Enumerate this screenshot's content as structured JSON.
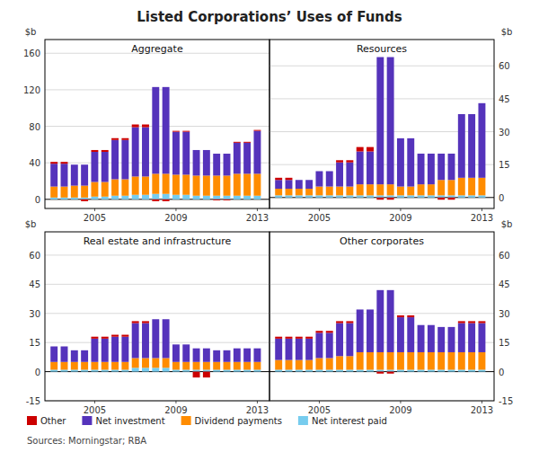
{
  "title": "Listed Corporations’ Uses of Funds",
  "annotations": [
    "Sources: Morningstar; RBA"
  ],
  "chart_data": [
    {
      "type": "bar",
      "stacked": true,
      "grid": true,
      "legend": "bottom",
      "title": "Aggregate",
      "ylabel": "$b",
      "x": [
        2003,
        2003.5,
        2004,
        2004.5,
        2005,
        2005.5,
        2006,
        2006.5,
        2007,
        2007.5,
        2008,
        2008.5,
        2009,
        2009.5,
        2010,
        2010.5,
        2011,
        2011.5,
        2012,
        2012.5,
        2013
      ],
      "xlim": [
        2002.55,
        2013.6
      ],
      "xticks": [
        2005,
        2009,
        2013
      ],
      "ylim": [
        -10,
        175
      ],
      "yticks": [
        0,
        40,
        80,
        120,
        160
      ],
      "series": [
        {
          "name": "Other",
          "color": "#cc0000",
          "values": [
            2,
            2,
            0,
            -2,
            2,
            2,
            2,
            2,
            3,
            3,
            -2,
            -2,
            1,
            1,
            0,
            0,
            -1,
            -1,
            1,
            1,
            1
          ]
        },
        {
          "name": "Net investment",
          "color": "#5533bb",
          "values": [
            25,
            25,
            23,
            23,
            33,
            33,
            43,
            43,
            54,
            54,
            95,
            95,
            47,
            47,
            28,
            28,
            24,
            24,
            34,
            34,
            47
          ]
        },
        {
          "name": "Dividend payments",
          "color": "#ff8c00",
          "values": [
            12,
            12,
            13,
            13,
            16,
            16,
            18,
            18,
            20,
            20,
            22,
            22,
            22,
            22,
            22,
            22,
            22,
            22,
            24,
            24,
            24
          ]
        },
        {
          "name": "Net interest paid",
          "color": "#77ccee",
          "values": [
            2,
            2,
            2,
            2,
            3,
            3,
            4,
            4,
            5,
            5,
            6,
            6,
            5,
            5,
            4,
            4,
            4,
            4,
            4,
            4,
            4
          ]
        }
      ]
    },
    {
      "type": "bar",
      "stacked": true,
      "grid": true,
      "title": "Resources",
      "ylabel": "$b",
      "x": [
        2003,
        2003.5,
        2004,
        2004.5,
        2005,
        2005.5,
        2006,
        2006.5,
        2007,
        2007.5,
        2008,
        2008.5,
        2009,
        2009.5,
        2010,
        2010.5,
        2011,
        2011.5,
        2012,
        2012.5,
        2013
      ],
      "xlim": [
        2002.55,
        2013.6
      ],
      "xticks": [
        2005,
        2009,
        2013
      ],
      "ylim": [
        -5,
        72
      ],
      "yticks": [
        0,
        15,
        30,
        45,
        60
      ],
      "series": [
        {
          "name": "Other",
          "color": "#cc0000",
          "values": [
            1,
            1,
            0,
            0,
            0,
            0,
            1,
            1,
            2,
            2,
            -1,
            -1,
            0,
            0,
            0,
            0,
            -1,
            -1,
            0,
            0,
            0
          ]
        },
        {
          "name": "Net investment",
          "color": "#5533bb",
          "values": [
            4,
            4,
            4,
            4,
            7,
            7,
            11,
            11,
            15,
            15,
            58,
            58,
            22,
            22,
            14,
            14,
            12,
            12,
            29,
            29,
            34
          ]
        },
        {
          "name": "Dividend payments",
          "color": "#ff8c00",
          "values": [
            3,
            3,
            3,
            3,
            4,
            4,
            4,
            4,
            5,
            5,
            5,
            5,
            4,
            4,
            5,
            5,
            7,
            7,
            8,
            8,
            8
          ]
        },
        {
          "name": "Net interest paid",
          "color": "#77ccee",
          "values": [
            1,
            1,
            1,
            1,
            1,
            1,
            1,
            1,
            1,
            1,
            1,
            1,
            1,
            1,
            1,
            1,
            1,
            1,
            1,
            1,
            1
          ]
        }
      ]
    },
    {
      "type": "bar",
      "stacked": true,
      "grid": true,
      "title": "Real estate and infrastructure",
      "ylabel": "$b",
      "x": [
        2003,
        2003.5,
        2004,
        2004.5,
        2005,
        2005.5,
        2006,
        2006.5,
        2007,
        2007.5,
        2008,
        2008.5,
        2009,
        2009.5,
        2010,
        2010.5,
        2011,
        2011.5,
        2012,
        2012.5,
        2013
      ],
      "xlim": [
        2002.55,
        2013.6
      ],
      "xticks": [
        2005,
        2009,
        2013
      ],
      "ylim": [
        -15,
        72
      ],
      "yticks": [
        -15,
        0,
        15,
        30,
        45,
        60
      ],
      "series": [
        {
          "name": "Other",
          "color": "#cc0000",
          "values": [
            0,
            0,
            0,
            0,
            1,
            1,
            1,
            1,
            1,
            1,
            0,
            0,
            0,
            0,
            -3,
            -3,
            0,
            0,
            0,
            0,
            0
          ]
        },
        {
          "name": "Net investment",
          "color": "#5533bb",
          "values": [
            8,
            8,
            6,
            6,
            12,
            12,
            13,
            13,
            18,
            18,
            20,
            20,
            9,
            9,
            7,
            7,
            6,
            6,
            7,
            7,
            7
          ]
        },
        {
          "name": "Dividend payments",
          "color": "#ff8c00",
          "values": [
            4,
            4,
            4,
            4,
            4,
            4,
            4,
            4,
            5,
            5,
            5,
            5,
            4,
            4,
            4,
            4,
            4,
            4,
            4,
            4,
            4
          ]
        },
        {
          "name": "Net interest paid",
          "color": "#77ccee",
          "values": [
            1,
            1,
            1,
            1,
            1,
            1,
            1,
            1,
            2,
            2,
            2,
            2,
            1,
            1,
            1,
            1,
            1,
            1,
            1,
            1,
            1
          ]
        }
      ]
    },
    {
      "type": "bar",
      "stacked": true,
      "grid": true,
      "title": "Other corporates",
      "ylabel": "$b",
      "x": [
        2003,
        2003.5,
        2004,
        2004.5,
        2005,
        2005.5,
        2006,
        2006.5,
        2007,
        2007.5,
        2008,
        2008.5,
        2009,
        2009.5,
        2010,
        2010.5,
        2011,
        2011.5,
        2012,
        2012.5,
        2013
      ],
      "xlim": [
        2002.55,
        2013.6
      ],
      "xticks": [
        2005,
        2009,
        2013
      ],
      "ylim": [
        -15,
        72
      ],
      "yticks": [
        -15,
        0,
        15,
        30,
        45,
        60
      ],
      "series": [
        {
          "name": "Other",
          "color": "#cc0000",
          "values": [
            1,
            1,
            1,
            1,
            1,
            1,
            1,
            1,
            0,
            0,
            -1,
            -1,
            1,
            1,
            0,
            0,
            0,
            0,
            1,
            1,
            1
          ]
        },
        {
          "name": "Net investment",
          "color": "#5533bb",
          "values": [
            11,
            11,
            11,
            11,
            13,
            13,
            17,
            17,
            22,
            22,
            32,
            32,
            18,
            18,
            14,
            14,
            13,
            13,
            15,
            15,
            15
          ]
        },
        {
          "name": "Dividend payments",
          "color": "#ff8c00",
          "values": [
            5,
            5,
            5,
            5,
            6,
            6,
            7,
            7,
            9,
            9,
            9,
            9,
            9,
            9,
            9,
            9,
            9,
            9,
            9,
            9,
            9
          ]
        },
        {
          "name": "Net interest paid",
          "color": "#77ccee",
          "values": [
            1,
            1,
            1,
            1,
            1,
            1,
            1,
            1,
            1,
            1,
            1,
            1,
            1,
            1,
            1,
            1,
            1,
            1,
            1,
            1,
            1
          ]
        }
      ]
    }
  ]
}
